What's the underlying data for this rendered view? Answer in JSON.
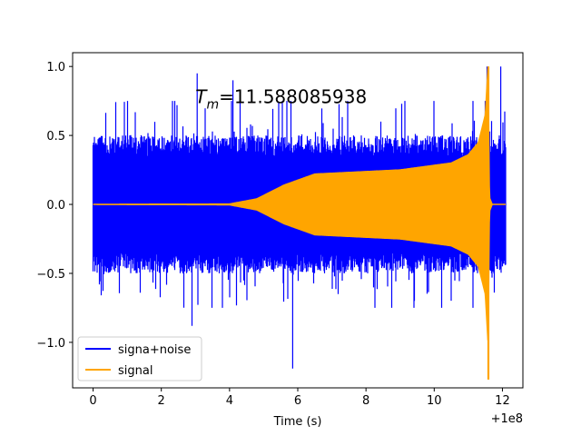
{
  "chart_data": {
    "type": "line",
    "title": "",
    "xlabel": "Time (s)",
    "ylabel": "",
    "x_offset_label": "+1e8",
    "xlim": [
      -0.6,
      12.6
    ],
    "ylim": [
      -1.33,
      1.1
    ],
    "xticks": [
      0,
      2,
      4,
      6,
      8,
      10,
      12
    ],
    "xtick_labels": [
      "0",
      "2",
      "4",
      "6",
      "8",
      "10",
      "12"
    ],
    "yticks": [
      -1.0,
      -0.5,
      0.0,
      0.5,
      1.0
    ],
    "ytick_labels": [
      "−1.0",
      "−0.5",
      "0.0",
      "0.5",
      "1.0"
    ],
    "annotation": {
      "var": "T",
      "sub": "m",
      "value": "=11.588085938",
      "x": 3.0,
      "y": 0.8
    },
    "legend_position": "lower-left",
    "series": [
      {
        "name": "signa+noise",
        "color": "#0000ff",
        "x_range": [
          0,
          12.1
        ],
        "baseline_amplitude": 0.5,
        "typical_max": 0.75,
        "peaks": [
          {
            "x": 2.9,
            "y": -0.88
          },
          {
            "x": 3.05,
            "y": 0.95
          },
          {
            "x": 4.1,
            "y": 0.9
          },
          {
            "x": 5.85,
            "y": -1.19
          },
          {
            "x": 11.55,
            "y": 1.0
          },
          {
            "x": 11.95,
            "y": 1.0
          },
          {
            "x": 11.6,
            "y": -0.9
          }
        ]
      },
      {
        "name": "signal",
        "color": "#ffa500",
        "x_range": [
          0,
          12.1
        ],
        "envelope_x": [
          0,
          4.0,
          4.8,
          5.6,
          6.5,
          9.0,
          10.5,
          11.0,
          11.3,
          11.5,
          11.58,
          11.62,
          11.7,
          12.1
        ],
        "envelope_y": [
          0.0,
          0.003,
          0.04,
          0.14,
          0.22,
          0.25,
          0.3,
          0.36,
          0.45,
          0.65,
          1.0,
          0.05,
          0.0,
          0.0
        ],
        "min_value": -1.27,
        "max_value": 1.0,
        "merger_time": 11.588
      }
    ]
  }
}
